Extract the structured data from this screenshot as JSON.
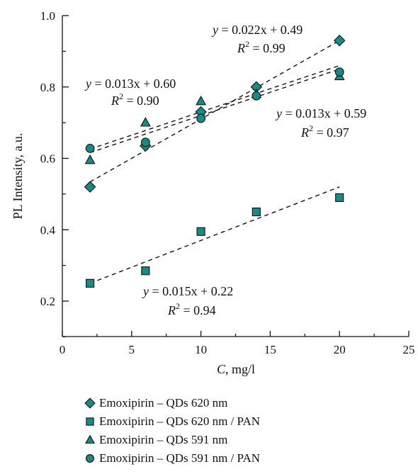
{
  "chart_data": {
    "type": "scatter",
    "xlabel_var": "C",
    "xlabel_unit": ", mg/l",
    "ylabel": "PL Intensity, a.u.",
    "xlim": [
      0,
      25
    ],
    "ylim": [
      0.1,
      1.0
    ],
    "xticks": [
      "0",
      "5",
      "10",
      "15",
      "20",
      "25"
    ],
    "yticks": [
      "0.2",
      "0.4",
      "0.6",
      "0.8",
      "1.0"
    ],
    "grid": false,
    "legend_position": "bottom",
    "marker_color": "#1a8a84",
    "series": [
      {
        "name": "Emoxipirin – QDs 620 nm",
        "marker": "diamond",
        "x": [
          2,
          6,
          10,
          14,
          20
        ],
        "y": [
          0.52,
          0.635,
          0.73,
          0.8,
          0.93
        ],
        "fit": {
          "slope": 0.022,
          "intercept": 0.49
        },
        "equation": {
          "lhs": "y",
          "rhs": " = 0.022x + 0.49",
          "r2": " = 0.99"
        }
      },
      {
        "name": "Emoxipirin – QDs 620 nm / PAN",
        "marker": "square",
        "x": [
          2,
          6,
          10,
          14,
          20
        ],
        "y": [
          0.25,
          0.285,
          0.395,
          0.45,
          0.49
        ],
        "fit": {
          "slope": 0.015,
          "intercept": 0.22
        },
        "equation": {
          "lhs": "y",
          "rhs": " = 0.015x + 0.22",
          "r2": " = 0.94"
        }
      },
      {
        "name": "Emoxipirin – QDs 591 nm",
        "marker": "triangle",
        "x": [
          2,
          6,
          10,
          14,
          20
        ],
        "y": [
          0.595,
          0.7,
          0.76,
          0.78,
          0.83
        ],
        "fit": {
          "slope": 0.013,
          "intercept": 0.59
        },
        "equation": {
          "lhs": "y",
          "rhs": " = 0.013x + 0.59",
          "r2": " = 0.97"
        }
      },
      {
        "name": "Emoxipirin – QDs 591 nm / PAN",
        "marker": "circle",
        "x": [
          2,
          6,
          10,
          14,
          20
        ],
        "y": [
          0.628,
          0.645,
          0.712,
          0.775,
          0.842
        ],
        "fit": {
          "slope": 0.013,
          "intercept": 0.6
        },
        "equation": {
          "lhs": "y",
          "rhs": " = 0.013x + 0.60",
          "r2": " = 0.90"
        }
      }
    ]
  }
}
